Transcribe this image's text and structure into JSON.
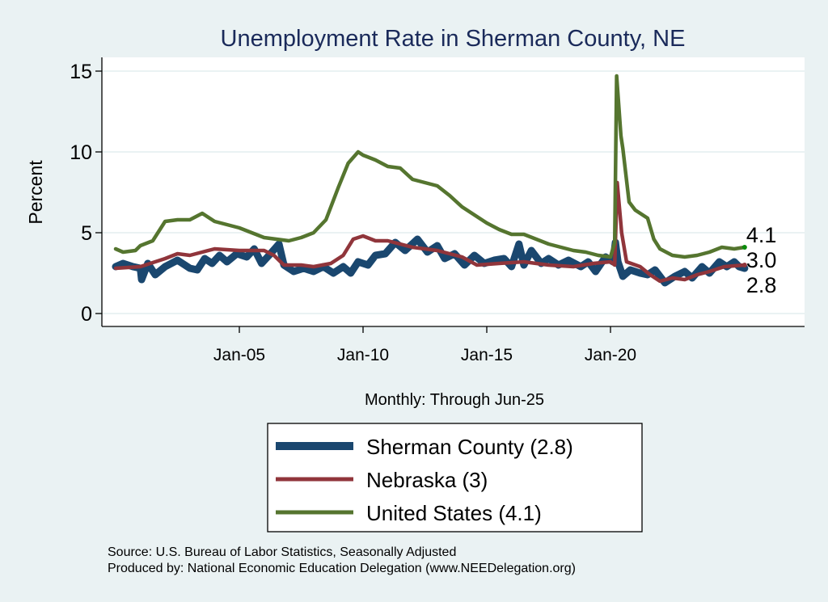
{
  "chart_data": {
    "type": "line",
    "title": "Unemployment Rate in Sherman  County, NE",
    "xlabel": "Monthly: Through Jun-25",
    "ylabel": "Percent",
    "xlim": [
      2000,
      2025.42
    ],
    "ylim": [
      -0.8,
      15.8
    ],
    "yticks": [
      0,
      5,
      10,
      15
    ],
    "yticklabels": [
      "0",
      "5",
      "10",
      "15"
    ],
    "xticks": [
      2005,
      2010,
      2015,
      2020
    ],
    "xticklabels": [
      "Jan-05",
      "Jan-10",
      "Jan-15",
      "Jan-20"
    ],
    "grid": true,
    "legend_position": "bottom",
    "series": [
      {
        "name": "Sherman  County (2.8)",
        "end_label": "2.8",
        "color": "#1a476f",
        "points": [
          [
            2000,
            2.9
          ],
          [
            2000.3,
            3.1
          ],
          [
            2000.7,
            2.9
          ],
          [
            2001,
            2.8
          ],
          [
            2001.05,
            2.1
          ],
          [
            2001.3,
            3.1
          ],
          [
            2001.6,
            2.4
          ],
          [
            2002,
            2.9
          ],
          [
            2002.5,
            3.3
          ],
          [
            2002.8,
            3.0
          ],
          [
            2003,
            2.8
          ],
          [
            2003.3,
            2.7
          ],
          [
            2003.6,
            3.4
          ],
          [
            2003.9,
            3.1
          ],
          [
            2004.2,
            3.6
          ],
          [
            2004.5,
            3.2
          ],
          [
            2004.9,
            3.7
          ],
          [
            2005.3,
            3.5
          ],
          [
            2005.6,
            4.0
          ],
          [
            2005.9,
            3.1
          ],
          [
            2006.2,
            3.6
          ],
          [
            2006.6,
            4.3
          ],
          [
            2006.8,
            3.0
          ],
          [
            2007.2,
            2.6
          ],
          [
            2007.6,
            2.8
          ],
          [
            2008,
            2.6
          ],
          [
            2008.4,
            2.9
          ],
          [
            2008.8,
            2.5
          ],
          [
            2009.2,
            2.9
          ],
          [
            2009.5,
            2.5
          ],
          [
            2009.8,
            3.2
          ],
          [
            2010.2,
            3.0
          ],
          [
            2010.5,
            3.6
          ],
          [
            2010.9,
            3.7
          ],
          [
            2011.3,
            4.4
          ],
          [
            2011.7,
            3.9
          ],
          [
            2012.2,
            4.6
          ],
          [
            2012.6,
            3.8
          ],
          [
            2013,
            4.2
          ],
          [
            2013.3,
            3.4
          ],
          [
            2013.7,
            3.7
          ],
          [
            2014.1,
            3.0
          ],
          [
            2014.5,
            3.6
          ],
          [
            2014.9,
            3.1
          ],
          [
            2015.3,
            3.3
          ],
          [
            2015.7,
            3.4
          ],
          [
            2016,
            2.9
          ],
          [
            2016.3,
            4.3
          ],
          [
            2016.5,
            3.0
          ],
          [
            2016.8,
            3.9
          ],
          [
            2017.2,
            3.1
          ],
          [
            2017.5,
            3.4
          ],
          [
            2017.9,
            3.0
          ],
          [
            2018.3,
            3.3
          ],
          [
            2018.8,
            2.9
          ],
          [
            2019.1,
            3.2
          ],
          [
            2019.4,
            2.6
          ],
          [
            2019.8,
            3.5
          ],
          [
            2020.1,
            3.2
          ],
          [
            2020.2,
            4.4
          ],
          [
            2020.3,
            3.2
          ],
          [
            2020.5,
            2.3
          ],
          [
            2020.8,
            2.7
          ],
          [
            2021.2,
            2.5
          ],
          [
            2021.5,
            2.4
          ],
          [
            2021.8,
            2.7
          ],
          [
            2022.2,
            1.9
          ],
          [
            2022.6,
            2.3
          ],
          [
            2023,
            2.6
          ],
          [
            2023.3,
            2.2
          ],
          [
            2023.7,
            2.9
          ],
          [
            2024,
            2.5
          ],
          [
            2024.4,
            3.2
          ],
          [
            2024.7,
            2.9
          ],
          [
            2025,
            3.2
          ],
          [
            2025.2,
            2.9
          ],
          [
            2025.42,
            2.8
          ]
        ]
      },
      {
        "name": "Nebraska (3)",
        "end_label": "3.0",
        "color": "#90353b",
        "points": [
          [
            2000,
            2.8
          ],
          [
            2001,
            2.9
          ],
          [
            2002,
            3.4
          ],
          [
            2002.5,
            3.7
          ],
          [
            2003,
            3.6
          ],
          [
            2004,
            4.0
          ],
          [
            2005,
            3.9
          ],
          [
            2006,
            3.9
          ],
          [
            2006.4,
            3.6
          ],
          [
            2006.8,
            3.0
          ],
          [
            2007.5,
            3.0
          ],
          [
            2008,
            2.9
          ],
          [
            2008.7,
            3.1
          ],
          [
            2009.2,
            3.6
          ],
          [
            2009.6,
            4.6
          ],
          [
            2010,
            4.8
          ],
          [
            2010.5,
            4.5
          ],
          [
            2011,
            4.5
          ],
          [
            2012,
            4.1
          ],
          [
            2013,
            3.9
          ],
          [
            2014,
            3.5
          ],
          [
            2014.6,
            3.0
          ],
          [
            2015.5,
            3.1
          ],
          [
            2016.5,
            3.2
          ],
          [
            2017.5,
            3.0
          ],
          [
            2018.5,
            2.9
          ],
          [
            2019.3,
            3.1
          ],
          [
            2020,
            3.2
          ],
          [
            2020.17,
            3.0
          ],
          [
            2020.27,
            8.1
          ],
          [
            2020.45,
            5.0
          ],
          [
            2020.65,
            3.2
          ],
          [
            2021.2,
            2.9
          ],
          [
            2021.6,
            2.4
          ],
          [
            2022,
            2.0
          ],
          [
            2022.5,
            2.2
          ],
          [
            2023,
            2.1
          ],
          [
            2023.5,
            2.4
          ],
          [
            2024,
            2.6
          ],
          [
            2024.6,
            2.9
          ],
          [
            2025.42,
            3.0
          ]
        ]
      },
      {
        "name": "United States (4.1)",
        "end_label": "4.1",
        "color": "#55752f",
        "points": [
          [
            2000,
            4.0
          ],
          [
            2000.3,
            3.8
          ],
          [
            2000.8,
            3.9
          ],
          [
            2001,
            4.2
          ],
          [
            2001.5,
            4.5
          ],
          [
            2002,
            5.7
          ],
          [
            2002.5,
            5.8
          ],
          [
            2003,
            5.8
          ],
          [
            2003.5,
            6.2
          ],
          [
            2004,
            5.7
          ],
          [
            2004.5,
            5.5
          ],
          [
            2005,
            5.3
          ],
          [
            2005.5,
            5.0
          ],
          [
            2006,
            4.7
          ],
          [
            2006.5,
            4.6
          ],
          [
            2007,
            4.5
          ],
          [
            2007.5,
            4.7
          ],
          [
            2008,
            5.0
          ],
          [
            2008.5,
            5.8
          ],
          [
            2009,
            7.8
          ],
          [
            2009.4,
            9.3
          ],
          [
            2009.8,
            10.0
          ],
          [
            2010,
            9.8
          ],
          [
            2010.5,
            9.5
          ],
          [
            2011,
            9.1
          ],
          [
            2011.5,
            9.0
          ],
          [
            2012,
            8.3
          ],
          [
            2012.5,
            8.1
          ],
          [
            2013,
            7.9
          ],
          [
            2013.5,
            7.3
          ],
          [
            2014,
            6.6
          ],
          [
            2014.5,
            6.1
          ],
          [
            2015,
            5.6
          ],
          [
            2015.5,
            5.2
          ],
          [
            2016,
            4.9
          ],
          [
            2016.5,
            4.9
          ],
          [
            2017,
            4.6
          ],
          [
            2017.5,
            4.3
          ],
          [
            2018,
            4.1
          ],
          [
            2018.5,
            3.9
          ],
          [
            2019,
            3.8
          ],
          [
            2019.5,
            3.6
          ],
          [
            2020,
            3.5
          ],
          [
            2020.17,
            4.4
          ],
          [
            2020.25,
            14.7
          ],
          [
            2020.42,
            11.0
          ],
          [
            2020.5,
            10.2
          ],
          [
            2020.75,
            6.9
          ],
          [
            2021,
            6.4
          ],
          [
            2021.5,
            5.9
          ],
          [
            2021.75,
            4.6
          ],
          [
            2022,
            4.0
          ],
          [
            2022.5,
            3.6
          ],
          [
            2023,
            3.5
          ],
          [
            2023.5,
            3.6
          ],
          [
            2024,
            3.8
          ],
          [
            2024.5,
            4.1
          ],
          [
            2025,
            4.0
          ],
          [
            2025.42,
            4.1
          ]
        ]
      }
    ]
  },
  "footer": {
    "source": "Source: U.S. Bureau of Labor Statistics, Seasonally Adjusted",
    "producer": "Produced by: National Economic Education Delegation (www.NEEDelegation.org)"
  },
  "colors": {
    "background": "#eaf2f3",
    "title": "#1a2a5a"
  }
}
